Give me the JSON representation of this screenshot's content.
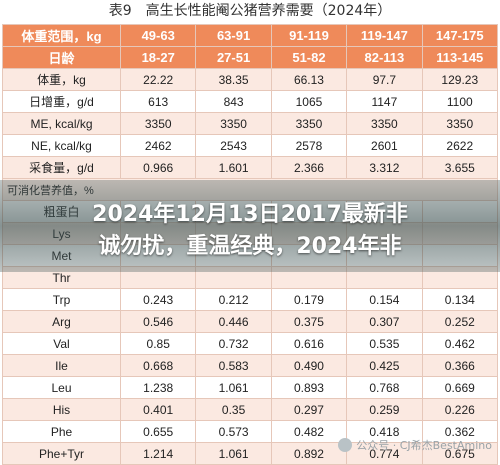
{
  "caption": "表9　高生长性能阉公猪营养需要（2024年）",
  "table": {
    "header_rows": [
      [
        "体重范围，kg",
        "49-63",
        "63-91",
        "91-119",
        "119-147",
        "147-175"
      ],
      [
        "日龄",
        "18-27",
        "27-51",
        "51-82",
        "82-113",
        "113-145"
      ]
    ],
    "rows_top": [
      [
        "体重，kg",
        "22.22",
        "38.35",
        "66.13",
        "97.7",
        "129.23"
      ],
      [
        "日增重，g/d",
        "613",
        "843",
        "1065",
        "1147",
        "1100"
      ],
      [
        "ME, kcal/kg",
        "3350",
        "3350",
        "3350",
        "3350",
        "3350"
      ],
      [
        "NE, kcal/kg",
        "2462",
        "2543",
        "2578",
        "2601",
        "2622"
      ],
      [
        "采食量，g/d",
        "0.966",
        "1.601",
        "2.366",
        "3.312",
        "3.655"
      ]
    ],
    "section_label": "可消化营养值，%",
    "rows_hidden": [
      [
        "粗蛋白",
        "",
        "",
        "",
        "",
        ""
      ],
      [
        "Lys",
        "",
        "",
        "",
        "",
        ""
      ],
      [
        "Met",
        "",
        "",
        "",
        "",
        ""
      ],
      [
        "Thr",
        "",
        "",
        "",
        "",
        ""
      ]
    ],
    "rows_bottom": [
      [
        "Trp",
        "0.243",
        "0.212",
        "0.179",
        "0.154",
        "0.134"
      ],
      [
        "Arg",
        "0.546",
        "0.446",
        "0.375",
        "0.307",
        "0.252"
      ],
      [
        "Val",
        "0.85",
        "0.732",
        "0.616",
        "0.535",
        "0.462"
      ],
      [
        "Ile",
        "0.668",
        "0.583",
        "0.490",
        "0.425",
        "0.366"
      ],
      [
        "Leu",
        "1.238",
        "1.061",
        "0.893",
        "0.768",
        "0.669"
      ],
      [
        "His",
        "0.401",
        "0.35",
        "0.297",
        "0.259",
        "0.226"
      ],
      [
        "Phe",
        "0.655",
        "0.573",
        "0.482",
        "0.418",
        "0.362"
      ],
      [
        "Phe+Tyr",
        "1.214",
        "1.061",
        "0.892",
        "0.774",
        "0.675"
      ]
    ]
  },
  "overlay": {
    "line1": "2024年12月13日2017最新非",
    "line2": "诚勿扰，重温经典，2024年非"
  },
  "watermark": "公众号 · CJ希杰BestAmino",
  "colors": {
    "header": "#ef8a5a",
    "band": "#fbe9e1",
    "border": "#e6c7b9"
  }
}
